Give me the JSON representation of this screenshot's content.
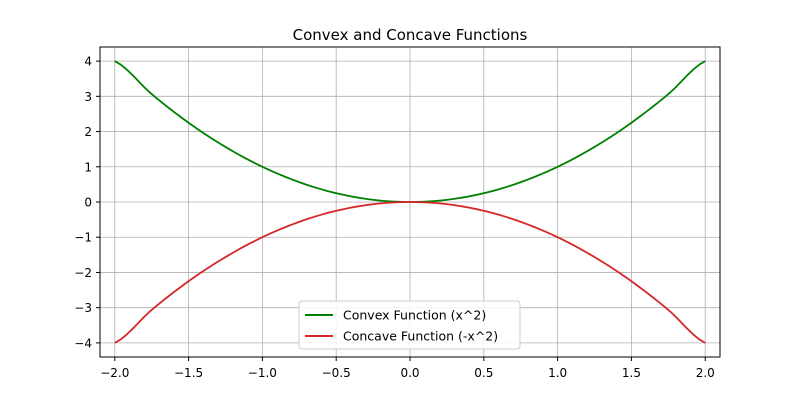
{
  "chart_data": {
    "type": "line",
    "title": "Convex and Concave Functions",
    "xlabel": "",
    "ylabel": "",
    "xlim": [
      -2.1,
      2.1
    ],
    "ylim": [
      -4.4,
      4.4
    ],
    "grid": true,
    "legend_position": "lower-center",
    "x_ticks": [
      -2.0,
      -1.5,
      -1.0,
      -0.5,
      0.0,
      0.5,
      1.0,
      1.5,
      2.0
    ],
    "x_tick_labels": [
      "−2.0",
      "−1.5",
      "−1.0",
      "−0.5",
      "0.0",
      "0.5",
      "1.0",
      "1.5",
      "2.0"
    ],
    "y_ticks": [
      4,
      3,
      2,
      1,
      0,
      -1,
      -2,
      -3,
      -4
    ],
    "y_tick_labels": [
      "4",
      "3",
      "2",
      "1",
      "0",
      "−1",
      "−2",
      "−3",
      "−4"
    ],
    "x": [
      -2.0,
      -1.75,
      -1.5,
      -1.25,
      -1.0,
      -0.75,
      -0.5,
      -0.25,
      0.0,
      0.25,
      0.5,
      0.75,
      1.0,
      1.25,
      1.5,
      1.75,
      2.0
    ],
    "series": [
      {
        "name": "Convex Function (x^2)",
        "color": "#008000",
        "values": [
          4.0,
          3.0625,
          2.25,
          1.5625,
          1.0,
          0.5625,
          0.25,
          0.0625,
          0.0,
          0.0625,
          0.25,
          0.5625,
          1.0,
          1.5625,
          2.25,
          3.0625,
          4.0
        ]
      },
      {
        "name": "Concave Function (-x^2)",
        "color": "#d62728",
        "values": [
          -4.0,
          -3.0625,
          -2.25,
          -1.5625,
          -1.0,
          -0.5625,
          -0.25,
          -0.0625,
          0.0,
          -0.0625,
          -0.25,
          -0.5625,
          -1.0,
          -1.5625,
          -2.25,
          -3.0625,
          -4.0
        ]
      }
    ]
  }
}
